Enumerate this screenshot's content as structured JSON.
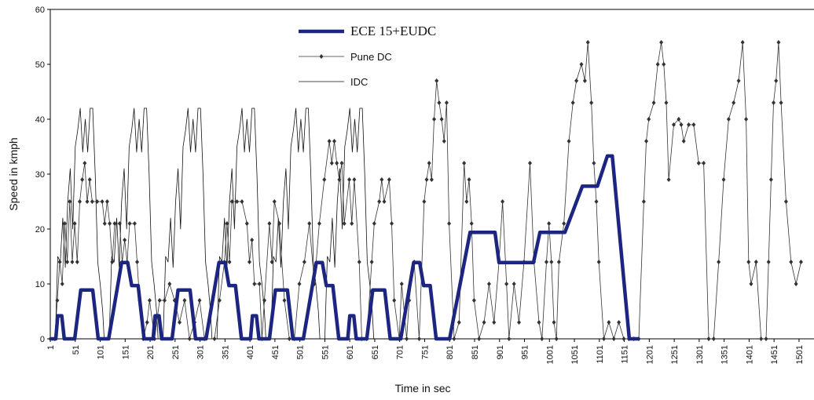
{
  "chart_data": {
    "type": "line",
    "xlabel": "Time in sec",
    "ylabel": "Speed in kmph",
    "xlim": [
      1,
      1531
    ],
    "ylim": [
      0,
      60
    ],
    "xticks": [
      1,
      51,
      101,
      151,
      201,
      251,
      301,
      351,
      401,
      451,
      501,
      551,
      601,
      651,
      701,
      751,
      801,
      851,
      901,
      951,
      1001,
      1051,
      1101,
      1151,
      1201,
      1251,
      1301,
      1351,
      1401,
      1451,
      1501
    ],
    "yticks": [
      0,
      10,
      20,
      30,
      40,
      50,
      60
    ],
    "series": [
      {
        "name": "IDC",
        "color": "#111111",
        "style": "thin",
        "x": [
          1,
          11,
          16,
          21,
          26,
          31,
          36,
          41,
          46,
          51,
          56,
          61,
          66,
          71,
          76,
          81,
          86,
          91,
          96,
          101,
          106,
          109,
          119,
          124,
          129,
          134,
          139,
          144,
          149,
          154,
          159,
          164,
          169,
          174,
          179,
          184,
          189,
          194,
          199,
          204,
          209,
          214,
          217,
          227,
          232,
          237,
          242,
          247,
          252,
          257,
          262,
          267,
          272,
          277,
          282,
          287,
          292,
          297,
          302,
          307,
          312,
          317,
          322,
          325,
          335,
          340,
          345,
          350,
          355,
          360,
          365,
          370,
          375,
          380,
          385,
          390,
          395,
          400,
          405,
          410,
          415,
          420,
          425,
          430,
          433,
          443,
          448,
          453,
          458,
          463,
          468,
          473,
          478,
          483,
          488,
          493,
          498,
          503,
          508,
          513,
          518,
          523,
          528,
          533,
          538,
          541,
          551,
          556,
          561,
          566,
          571,
          576,
          581,
          586,
          591,
          596,
          601,
          606,
          611,
          616,
          621,
          626,
          631,
          636,
          641,
          646,
          649
        ],
        "values": [
          0,
          0,
          15,
          14,
          22,
          13,
          25,
          31,
          20,
          35,
          38,
          42,
          34,
          40,
          34,
          42,
          42,
          30,
          14,
          10,
          5,
          0,
          0,
          15,
          14,
          22,
          13,
          25,
          31,
          20,
          35,
          38,
          42,
          34,
          40,
          34,
          42,
          42,
          30,
          14,
          10,
          5,
          0,
          0,
          15,
          14,
          22,
          13,
          25,
          31,
          20,
          35,
          38,
          42,
          34,
          40,
          34,
          42,
          42,
          30,
          14,
          10,
          5,
          0,
          0,
          15,
          14,
          22,
          13,
          25,
          31,
          20,
          35,
          38,
          42,
          34,
          40,
          34,
          42,
          42,
          30,
          14,
          10,
          5,
          0,
          0,
          15,
          14,
          22,
          13,
          25,
          31,
          20,
          35,
          38,
          42,
          34,
          40,
          34,
          42,
          42,
          30,
          14,
          10,
          5,
          0,
          0,
          15,
          14,
          22,
          13,
          25,
          31,
          20,
          35,
          38,
          42,
          34,
          40,
          34,
          42,
          42,
          30,
          14,
          10,
          5,
          0
        ]
      },
      {
        "name": "Pune DC",
        "color": "#333333",
        "style": "marker",
        "x": [
          1,
          10,
          15,
          20,
          25,
          30,
          35,
          40,
          45,
          50,
          55,
          60,
          65,
          70,
          75,
          80,
          85,
          95,
          105,
          110,
          115,
          120,
          125,
          130,
          140,
          145,
          150,
          155,
          160,
          170,
          175,
          180,
          187,
          195,
          200,
          210,
          220,
          230,
          240,
          250,
          260,
          270,
          280,
          290,
          300,
          310,
          330,
          340,
          350,
          355,
          360,
          365,
          375,
          385,
          395,
          400,
          405,
          410,
          420,
          425,
          430,
          440,
          445,
          450,
          460,
          470,
          480,
          490,
          500,
          510,
          520,
          530,
          540,
          550,
          560,
          565,
          570,
          575,
          580,
          585,
          590,
          600,
          605,
          610,
          620,
          625,
          635,
          645,
          650,
          660,
          665,
          670,
          680,
          685,
          690,
          700,
          705,
          715,
          720,
          730,
          740,
          750,
          755,
          760,
          765,
          770,
          775,
          780,
          785,
          790,
          795,
          800,
          810,
          820,
          830,
          835,
          840,
          845,
          850,
          860,
          870,
          880,
          890,
          900,
          907,
          915,
          920,
          930,
          940,
          950,
          962,
          970,
          980,
          986,
          995,
          1000,
          1005,
          1010,
          1015,
          1020,
          1030,
          1040,
          1048,
          1055,
          1065,
          1072,
          1078,
          1085,
          1090,
          1095,
          1100,
          1110,
          1120,
          1130,
          1140,
          1150,
          1160,
          1170,
          1180,
          1190,
          1195,
          1200,
          1210,
          1218,
          1225,
          1230,
          1235,
          1240,
          1250,
          1260,
          1265,
          1270,
          1280,
          1290,
          1300,
          1310,
          1320,
          1330,
          1340,
          1350,
          1360,
          1370,
          1380,
          1388,
          1395,
          1400,
          1405,
          1415,
          1425,
          1435,
          1440,
          1445,
          1450,
          1455,
          1460,
          1465,
          1475,
          1485,
          1495,
          1505
        ],
        "values": [
          0,
          0,
          7,
          14,
          10,
          21,
          14,
          25,
          14,
          21,
          14,
          25,
          29,
          32,
          25,
          29,
          25,
          25,
          25,
          21,
          25,
          21,
          14,
          21,
          21,
          14,
          18,
          14,
          21,
          21,
          14,
          7,
          0,
          3,
          7,
          0,
          7,
          7,
          10,
          7,
          3,
          7,
          0,
          3,
          7,
          0,
          0,
          7,
          14,
          21,
          14,
          25,
          25,
          25,
          21,
          14,
          18,
          10,
          10,
          0,
          7,
          21,
          14,
          25,
          21,
          7,
          0,
          0,
          10,
          14,
          21,
          10,
          21,
          29,
          36,
          32,
          36,
          32,
          29,
          32,
          21,
          29,
          21,
          29,
          14,
          0,
          0,
          14,
          21,
          25,
          29,
          25,
          29,
          21,
          7,
          0,
          10,
          0,
          7,
          14,
          0,
          25,
          29,
          32,
          29,
          40,
          47,
          43,
          40,
          36,
          43,
          21,
          0,
          3,
          32,
          25,
          29,
          21,
          7,
          0,
          3,
          10,
          3,
          14,
          25,
          10,
          0,
          10,
          3,
          14,
          32,
          14,
          3,
          0,
          14,
          21,
          14,
          3,
          0,
          14,
          21,
          36,
          43,
          47,
          50,
          47,
          54,
          43,
          32,
          25,
          14,
          0,
          3,
          0,
          3,
          0,
          0,
          0,
          0,
          25,
          36,
          40,
          43,
          50,
          54,
          50,
          43,
          29,
          39,
          40,
          39,
          36,
          39,
          39,
          32,
          32,
          0,
          0,
          14,
          29,
          40,
          43,
          47,
          54,
          40,
          14,
          10,
          14,
          0,
          0,
          14,
          29,
          43,
          47,
          54,
          43,
          25,
          14,
          10,
          14
        ]
      },
      {
        "name": "ECE 15+EUDC",
        "color": "#1c2580",
        "style": "thick",
        "x": [
          1,
          12,
          16,
          24,
          29,
          50,
          62,
          86,
          97,
          118,
          144,
          156,
          164,
          177,
          189,
          196,
          207,
          211,
          219,
          224,
          245,
          257,
          281,
          292,
          313,
          339,
          351,
          359,
          372,
          384,
          391,
          402,
          406,
          414,
          419,
          440,
          452,
          476,
          487,
          508,
          534,
          546,
          554,
          567,
          579,
          586,
          597,
          601,
          609,
          614,
          635,
          647,
          671,
          682,
          703,
          729,
          741,
          749,
          762,
          774,
          781,
          801,
          842,
          892,
          900,
          969,
          982,
          1032,
          1067,
          1097,
          1117,
          1127,
          1161,
          1181
        ],
        "values": [
          0,
          0,
          4.2,
          4.2,
          0,
          0,
          8.9,
          8.9,
          0,
          0,
          13.9,
          13.9,
          9.7,
          9.7,
          0,
          0,
          0,
          4.2,
          4.2,
          0,
          0,
          8.9,
          8.9,
          0,
          0,
          13.9,
          13.9,
          9.7,
          9.7,
          0,
          0,
          0,
          4.2,
          4.2,
          0,
          0,
          8.9,
          8.9,
          0,
          0,
          13.9,
          13.9,
          9.7,
          9.7,
          0,
          0,
          0,
          4.2,
          4.2,
          0,
          0,
          8.9,
          8.9,
          0,
          0,
          13.9,
          13.9,
          9.7,
          9.7,
          0,
          0,
          0,
          19.4,
          19.4,
          13.9,
          13.9,
          19.4,
          19.4,
          27.8,
          27.8,
          33.3,
          33.3,
          0,
          0
        ]
      }
    ]
  }
}
